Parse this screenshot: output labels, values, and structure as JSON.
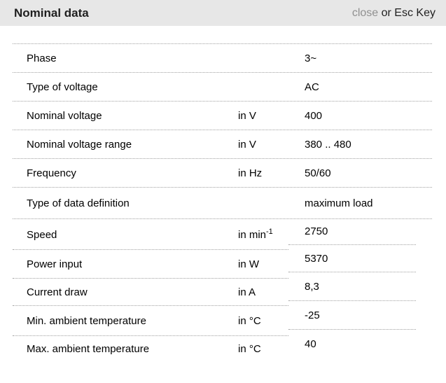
{
  "header": {
    "title": "Nominal data",
    "close_label": "close",
    "esc_hint": " or Esc Key"
  },
  "table": {
    "rows": [
      {
        "label": "Phase",
        "unit": "",
        "unit_sup": "",
        "value": "3~"
      },
      {
        "label": "Type of voltage",
        "unit": "",
        "unit_sup": "",
        "value": "AC"
      },
      {
        "label": "Nominal voltage",
        "unit": "in V",
        "unit_sup": "",
        "value": "400"
      },
      {
        "label": "Nominal voltage range",
        "unit": "in V",
        "unit_sup": "",
        "value": "380 .. 480"
      },
      {
        "label": "Frequency",
        "unit": "in Hz",
        "unit_sup": "",
        "value": "50/60"
      },
      {
        "label": "Type of data definition",
        "unit": "",
        "unit_sup": "",
        "value": "maximum load"
      },
      {
        "label": "Speed",
        "unit": "in min",
        "unit_sup": "-1",
        "value": "2750"
      },
      {
        "label": "Power input",
        "unit": "in W",
        "unit_sup": "",
        "value": "5370"
      },
      {
        "label": "Current draw",
        "unit": "in A",
        "unit_sup": "",
        "value": "8,3"
      },
      {
        "label": "Min. ambient temperature",
        "unit": "in °C",
        "unit_sup": "",
        "value": "-25"
      },
      {
        "label": "Max. ambient temperature",
        "unit": "in °C",
        "unit_sup": "",
        "value": "40"
      }
    ]
  },
  "colors": {
    "header_bg": "#e7e7e7",
    "divider": "#a0a0a0",
    "close_link": "#909090",
    "text": "#000000"
  }
}
